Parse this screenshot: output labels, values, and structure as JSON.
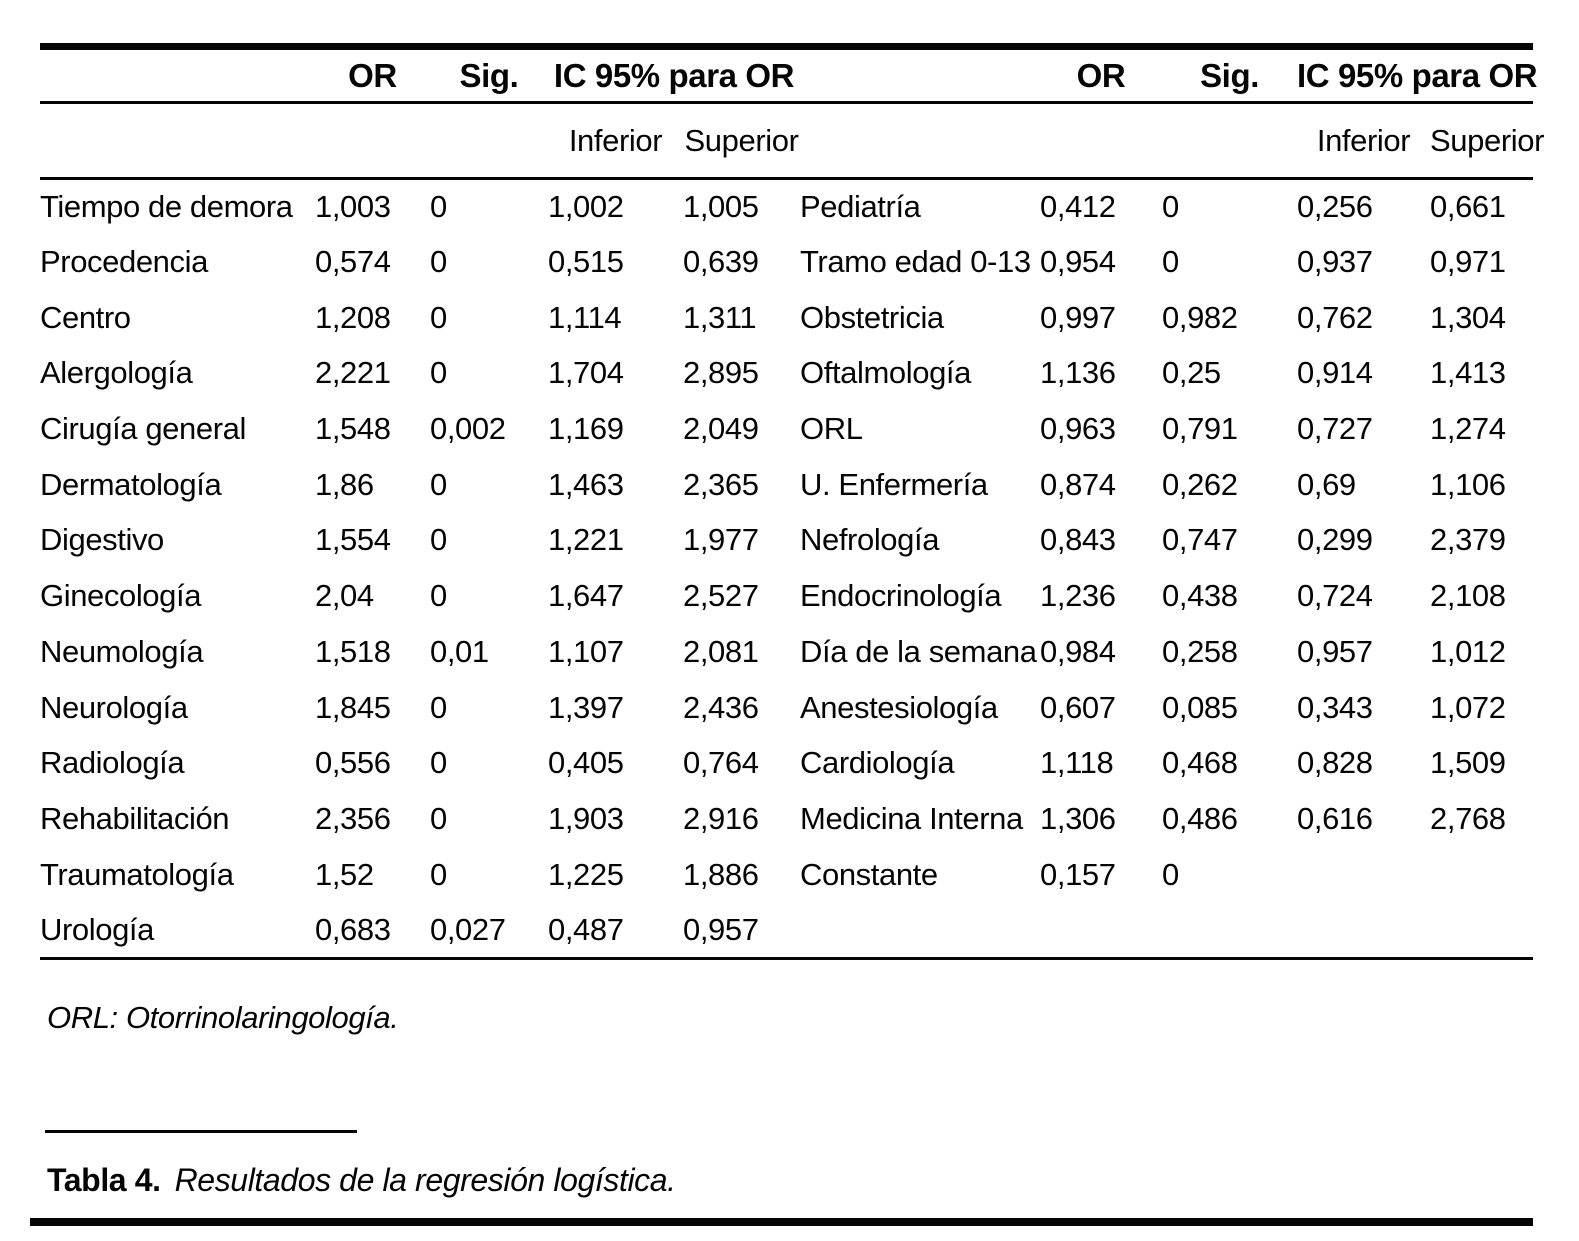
{
  "header": {
    "or": "OR",
    "sig": "Sig.",
    "ic": "IC 95% para OR",
    "inferior": "Inferior",
    "superior": "Superior"
  },
  "rows_left": [
    {
      "label": "Tiempo de demora",
      "or": "1,003",
      "sig": "0",
      "inf": "1,002",
      "sup": "1,005"
    },
    {
      "label": "Procedencia",
      "or": "0,574",
      "sig": "0",
      "inf": "0,515",
      "sup": "0,639"
    },
    {
      "label": "Centro",
      "or": "1,208",
      "sig": "0",
      "inf": "1,114",
      "sup": "1,311"
    },
    {
      "label": "Alergología",
      "or": "2,221",
      "sig": "0",
      "inf": "1,704",
      "sup": "2,895"
    },
    {
      "label": "Cirugía general",
      "or": "1,548",
      "sig": "0,002",
      "inf": "1,169",
      "sup": "2,049"
    },
    {
      "label": "Dermatología",
      "or": "1,86",
      "sig": "0",
      "inf": "1,463",
      "sup": "2,365"
    },
    {
      "label": "Digestivo",
      "or": "1,554",
      "sig": "0",
      "inf": "1,221",
      "sup": "1,977"
    },
    {
      "label": "Ginecología",
      "or": "2,04",
      "sig": "0",
      "inf": "1,647",
      "sup": "2,527"
    },
    {
      "label": "Neumología",
      "or": "1,518",
      "sig": "0,01",
      "inf": "1,107",
      "sup": "2,081"
    },
    {
      "label": "Neurología",
      "or": "1,845",
      "sig": "0",
      "inf": "1,397",
      "sup": "2,436"
    },
    {
      "label": "Radiología",
      "or": "0,556",
      "sig": "0",
      "inf": "0,405",
      "sup": "0,764"
    },
    {
      "label": "Rehabilitación",
      "or": "2,356",
      "sig": "0",
      "inf": "1,903",
      "sup": "2,916"
    },
    {
      "label": "Traumatología",
      "or": "1,52",
      "sig": "0",
      "inf": "1,225",
      "sup": "1,886"
    },
    {
      "label": "Urología",
      "or": "0,683",
      "sig": "0,027",
      "inf": "0,487",
      "sup": "0,957"
    }
  ],
  "rows_right": [
    {
      "label": "Pediatría",
      "or": "0,412",
      "sig": "0",
      "inf": "0,256",
      "sup": "0,661"
    },
    {
      "label": "Tramo edad 0-13",
      "or": "0,954",
      "sig": "0",
      "inf": "0,937",
      "sup": "0,971"
    },
    {
      "label": "Obstetricia",
      "or": "0,997",
      "sig": "0,982",
      "inf": "0,762",
      "sup": "1,304"
    },
    {
      "label": "Oftalmología",
      "or": "1,136",
      "sig": "0,25",
      "inf": "0,914",
      "sup": "1,413"
    },
    {
      "label": "ORL",
      "or": "0,963",
      "sig": "0,791",
      "inf": "0,727",
      "sup": "1,274"
    },
    {
      "label": "U. Enfermería",
      "or": "0,874",
      "sig": "0,262",
      "inf": "0,69",
      "sup": "1,106"
    },
    {
      "label": "Nefrología",
      "or": "0,843",
      "sig": "0,747",
      "inf": "0,299",
      "sup": "2,379"
    },
    {
      "label": "Endocrinología",
      "or": "1,236",
      "sig": "0,438",
      "inf": "0,724",
      "sup": "2,108"
    },
    {
      "label": "Día de la semana",
      "or": "0,984",
      "sig": "0,258",
      "inf": "0,957",
      "sup": "1,012"
    },
    {
      "label": "Anestesiología",
      "or": "0,607",
      "sig": "0,085",
      "inf": "0,343",
      "sup": "1,072"
    },
    {
      "label": "Cardiología",
      "or": "1,118",
      "sig": "0,468",
      "inf": "0,828",
      "sup": "1,509"
    },
    {
      "label": "Medicina Interna",
      "or": "1,306",
      "sig": "0,486",
      "inf": "0,616",
      "sup": "2,768"
    },
    {
      "label": "Constante",
      "or": "0,157",
      "sig": "0",
      "inf": "",
      "sup": ""
    }
  ],
  "footnote": "ORL: Otorrinolaringología.",
  "caption": {
    "label": "Tabla 4.",
    "text": "Resultados de la regresión logística."
  }
}
